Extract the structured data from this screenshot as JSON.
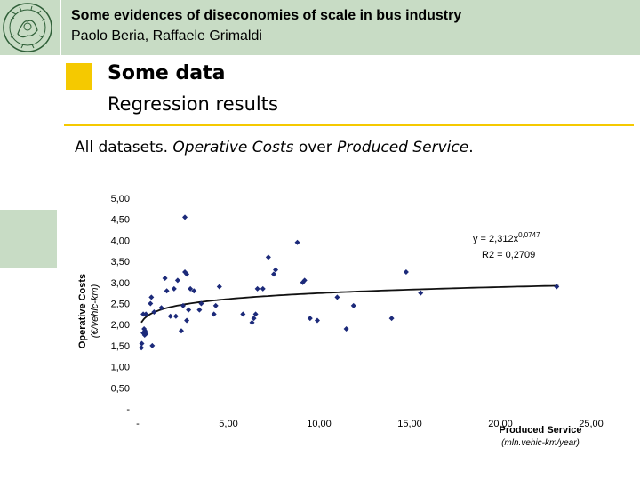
{
  "colors": {
    "header_bg": "#c8dcc5",
    "accent": "#f5c900",
    "marker": "#1c2a7a",
    "trend": "#111111"
  },
  "header": {
    "logo_icon": "politecnico-seal-icon",
    "title": "Some evidences of diseconomies of scale in bus industry",
    "authors": "Paolo Beria, Raffaele Grimaldi"
  },
  "slide": {
    "title": "Some data",
    "subtitle": "Regression results",
    "body_prefix": "All datasets. ",
    "body_italic1": "Operative Costs",
    "body_mid": " over ",
    "body_italic2": "Produced Service",
    "body_suffix": "."
  },
  "chart_data": {
    "type": "scatter",
    "ylabel": "Operative Costs",
    "yunit": "(€/vehic-km)",
    "xlabel": "Produced Service",
    "xunit": "(mln.vehic-km/year)",
    "xlim": [
      0,
      25
    ],
    "ylim": [
      0,
      5
    ],
    "x_ticks": [
      "-",
      "5,00",
      "10,00",
      "15,00",
      "20,00",
      "25,00"
    ],
    "y_ticks": [
      "-",
      "0,50",
      "1,00",
      "1,50",
      "2,00",
      "2,50",
      "3,00",
      "3,50",
      "4,00",
      "4,50",
      "5,00"
    ],
    "trendline": {
      "type": "power",
      "a": 2.312,
      "b": 0.0747,
      "equation": "y = 2,312x",
      "exponent": "0,0747",
      "r2_label": "R",
      "r2_value": "2 = 0,2709"
    },
    "points": [
      [
        0.2,
        1.45
      ],
      [
        0.22,
        1.55
      ],
      [
        0.3,
        1.8
      ],
      [
        0.35,
        1.9
      ],
      [
        0.38,
        1.75
      ],
      [
        0.4,
        1.85
      ],
      [
        0.45,
        1.78
      ],
      [
        0.3,
        2.25
      ],
      [
        0.45,
        2.25
      ],
      [
        0.8,
        1.5
      ],
      [
        0.7,
        2.5
      ],
      [
        0.75,
        2.65
      ],
      [
        0.9,
        2.3
      ],
      [
        1.3,
        2.4
      ],
      [
        1.5,
        3.1
      ],
      [
        1.6,
        2.8
      ],
      [
        1.8,
        2.2
      ],
      [
        2.0,
        2.85
      ],
      [
        2.1,
        2.2
      ],
      [
        2.2,
        3.05
      ],
      [
        2.4,
        1.85
      ],
      [
        2.5,
        2.45
      ],
      [
        2.6,
        3.25
      ],
      [
        2.6,
        4.55
      ],
      [
        2.7,
        3.2
      ],
      [
        2.7,
        2.1
      ],
      [
        2.8,
        2.35
      ],
      [
        2.9,
        2.85
      ],
      [
        3.1,
        2.8
      ],
      [
        3.4,
        2.35
      ],
      [
        3.5,
        2.5
      ],
      [
        4.2,
        2.25
      ],
      [
        4.3,
        2.45
      ],
      [
        4.5,
        2.9
      ],
      [
        5.8,
        2.25
      ],
      [
        6.3,
        2.05
      ],
      [
        6.4,
        2.15
      ],
      [
        6.5,
        2.25
      ],
      [
        6.6,
        2.85
      ],
      [
        6.9,
        2.85
      ],
      [
        7.2,
        3.6
      ],
      [
        7.5,
        3.2
      ],
      [
        7.6,
        3.3
      ],
      [
        8.8,
        3.95
      ],
      [
        9.1,
        3.0
      ],
      [
        9.2,
        3.05
      ],
      [
        9.5,
        2.15
      ],
      [
        9.9,
        2.1
      ],
      [
        11.0,
        2.65
      ],
      [
        11.5,
        1.9
      ],
      [
        11.9,
        2.45
      ],
      [
        14.0,
        2.15
      ],
      [
        14.8,
        3.25
      ],
      [
        15.6,
        2.75
      ],
      [
        23.1,
        2.9
      ]
    ]
  }
}
